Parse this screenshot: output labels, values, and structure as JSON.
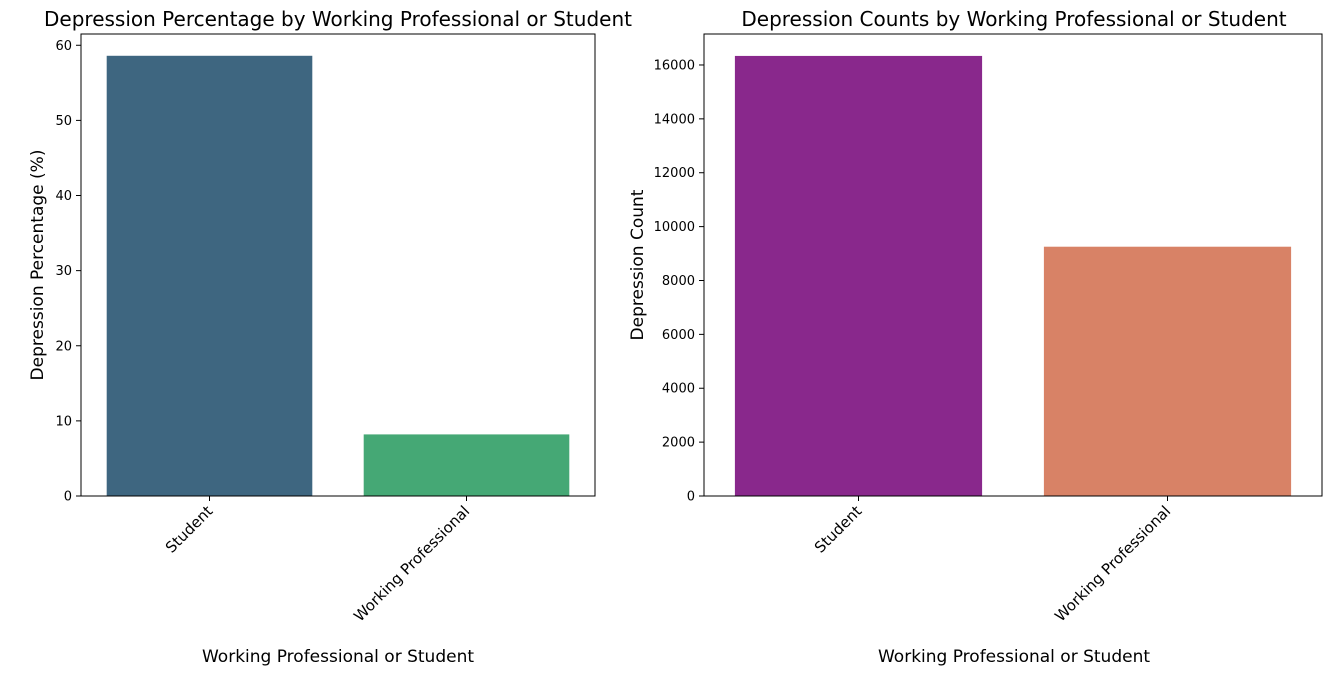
{
  "chart_data": [
    {
      "type": "bar",
      "title": "Depression Percentage by Working Professional or Student",
      "xlabel": "Working Professional or Student",
      "ylabel": "Depression Percentage (%)",
      "categories": [
        "Student",
        "Working Professional"
      ],
      "values": [
        58.6,
        8.2
      ],
      "colors": [
        "#3e6680",
        "#45a875"
      ],
      "ylim": [
        0,
        61.5
      ],
      "yticks": [
        0,
        10,
        20,
        30,
        40,
        50,
        60
      ],
      "ytick_labels": [
        "0",
        "10",
        "20",
        "30",
        "40",
        "50",
        "60"
      ],
      "grid": false,
      "legend": "none"
    },
    {
      "type": "bar",
      "title": "Depression Counts by Working Professional or Student",
      "xlabel": "Working Professional or Student",
      "ylabel": "Depression Count",
      "categories": [
        "Student",
        "Working Professional"
      ],
      "values": [
        16336,
        9254
      ],
      "colors": [
        "#89288c",
        "#d88266"
      ],
      "ylim": [
        0,
        17150
      ],
      "yticks": [
        0,
        2000,
        4000,
        6000,
        8000,
        10000,
        12000,
        14000,
        16000
      ],
      "ytick_labels": [
        "0",
        "2000",
        "4000",
        "6000",
        "8000",
        "10000",
        "12000",
        "14000",
        "16000"
      ],
      "grid": false,
      "legend": "none"
    }
  ]
}
